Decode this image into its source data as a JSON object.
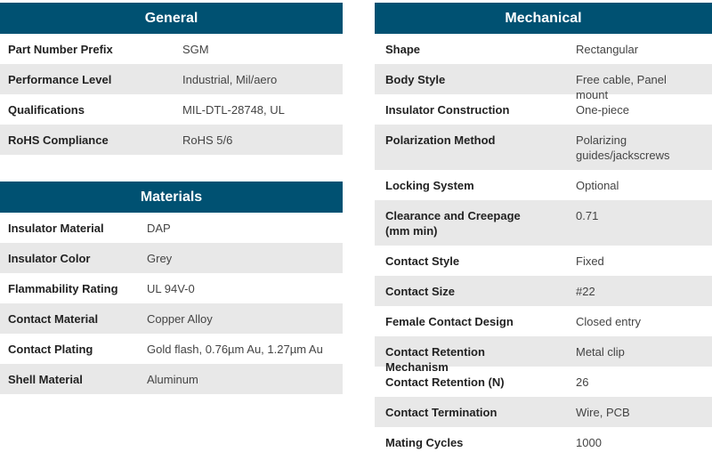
{
  "general": {
    "title": "General",
    "rows": [
      [
        "Part Number Prefix",
        "SGM"
      ],
      [
        "Performance Level",
        "Industrial, Mil/aero"
      ],
      [
        "Qualifications",
        "MIL-DTL-28748, UL"
      ],
      [
        "RoHS Compliance",
        "RoHS 5/6"
      ]
    ]
  },
  "materials": {
    "title": "Materials",
    "rows": [
      [
        "Insulator Material",
        "DAP"
      ],
      [
        "Insulator Color",
        "Grey"
      ],
      [
        "Flammability Rating",
        "UL 94V-0"
      ],
      [
        "Contact Material",
        "Copper Alloy"
      ],
      [
        "Contact Plating",
        "Gold flash, 0.76µm Au, 1.27µm Au"
      ],
      [
        "Shell Material",
        "Aluminum"
      ]
    ]
  },
  "mechanical": {
    "title": "Mechanical",
    "rows": [
      [
        "Shape",
        "Rectangular"
      ],
      [
        "Body Style",
        "Free cable, Panel mount"
      ],
      [
        "Insulator Construction",
        "One-piece"
      ],
      [
        "Polarization Method",
        "Polarizing guides/jackscrews"
      ],
      [
        "Locking System",
        "Optional"
      ],
      [
        "Clearance and Creepage (mm min)",
        "0.71"
      ],
      [
        "Contact Style",
        "Fixed"
      ],
      [
        "Contact Size",
        "#22"
      ],
      [
        "Female Contact Design",
        "Closed entry"
      ],
      [
        "Contact Retention Mechanism",
        "Metal clip"
      ],
      [
        "Contact Retention (N)",
        "26"
      ],
      [
        "Contact Termination",
        "Wire, PCB"
      ],
      [
        "Mating Cycles",
        "1000"
      ]
    ]
  }
}
